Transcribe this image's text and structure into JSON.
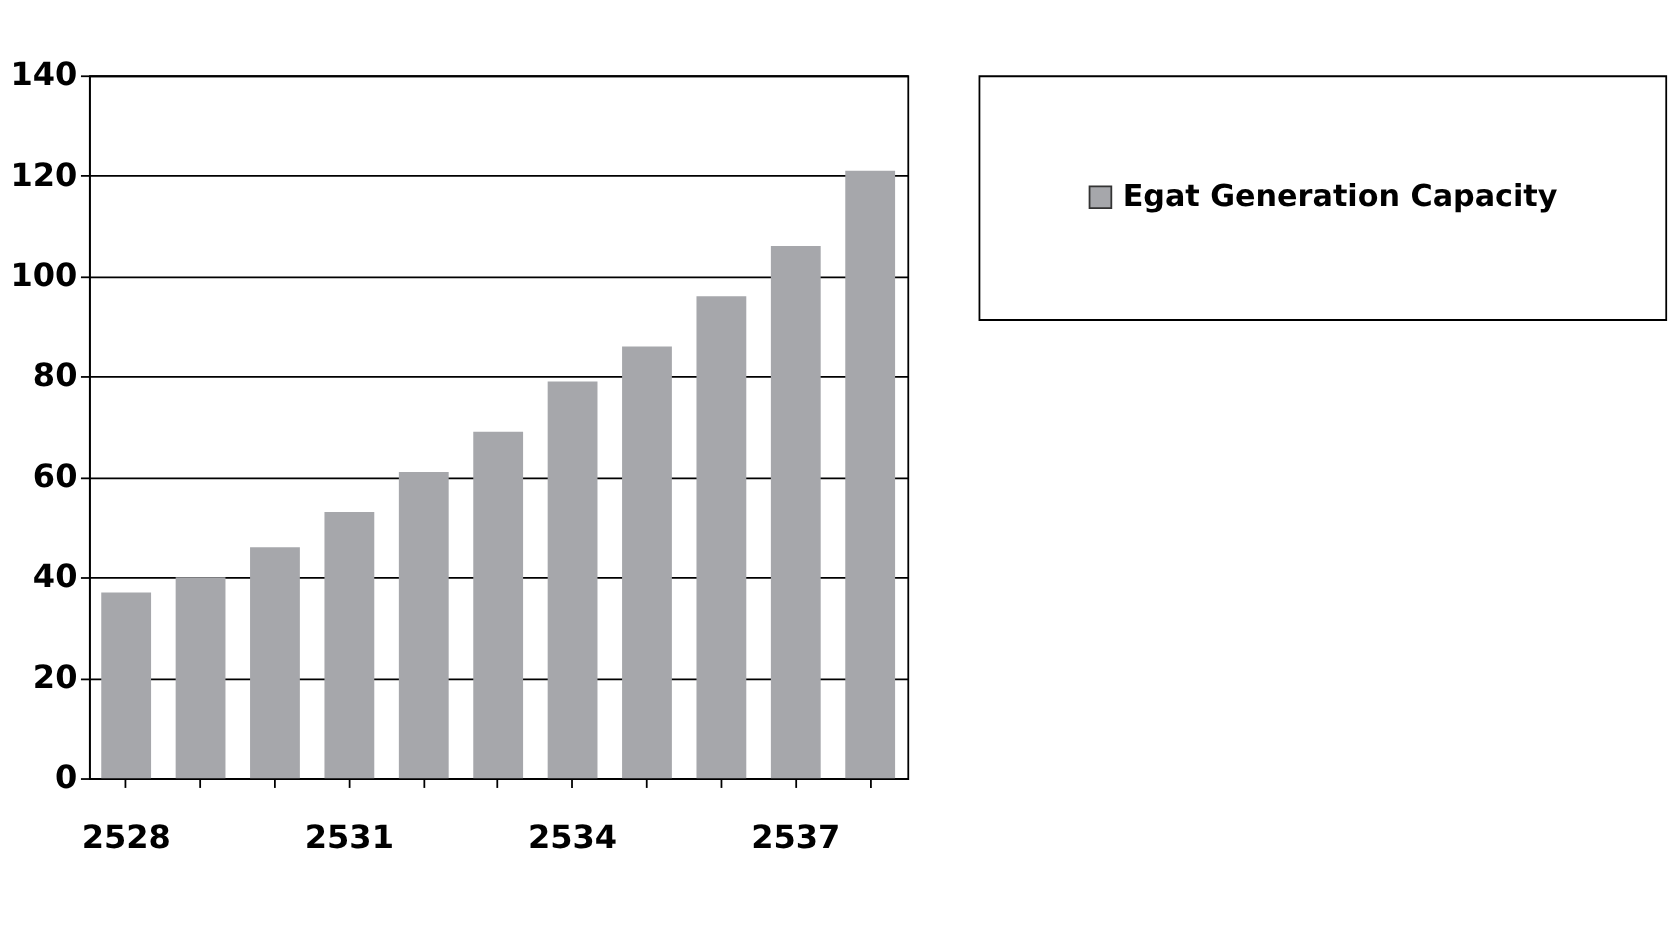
{
  "chart_data": {
    "type": "bar",
    "categories": [
      "2528",
      null,
      null,
      "2531",
      null,
      null,
      "2534",
      null,
      null,
      "2537",
      null
    ],
    "series": [
      {
        "name": "Egat Generation Capacity",
        "color": "#a6a7ab",
        "values": [
          37,
          40,
          46,
          53,
          61,
          69,
          79,
          86,
          96,
          106,
          121
        ]
      }
    ],
    "ylim": [
      0,
      140
    ],
    "yticks": [
      0,
      20,
      40,
      60,
      80,
      100,
      120,
      140
    ],
    "grid": "y",
    "legend": "right"
  }
}
